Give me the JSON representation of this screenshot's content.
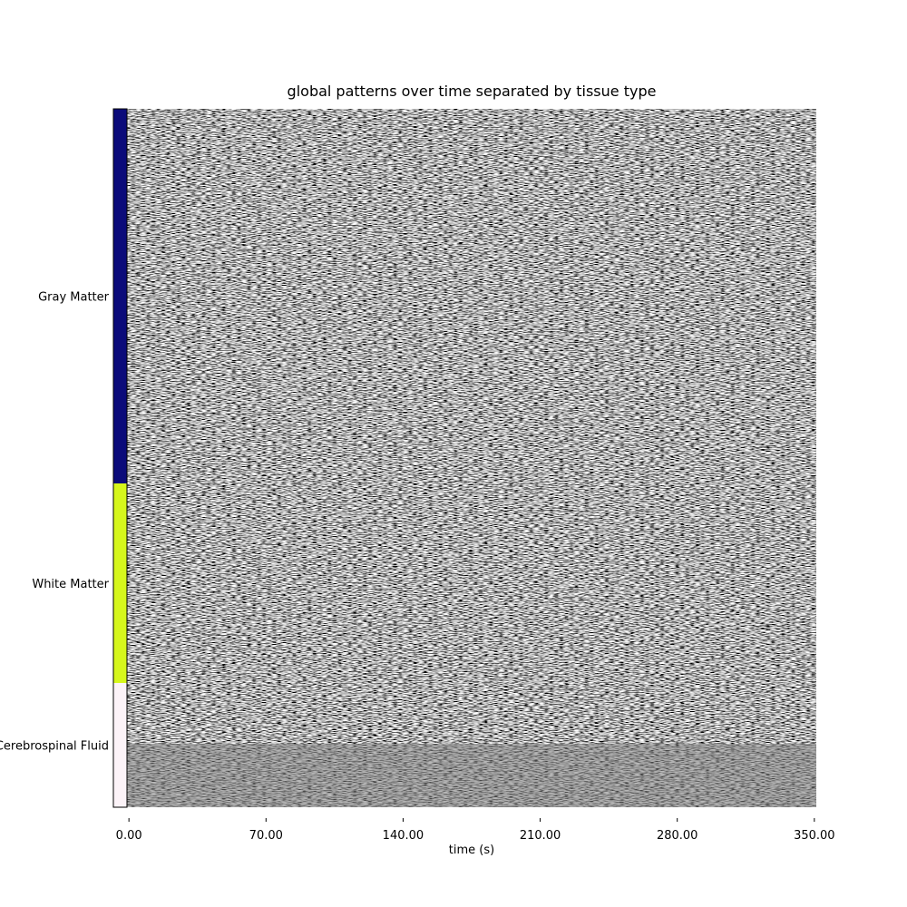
{
  "chart_data": {
    "type": "carpet",
    "title": "global patterns over time separated by tissue type",
    "x_label": "time (s)",
    "xlim": [
      -1,
      351
    ],
    "xticks": [
      {
        "value": 0,
        "label": "0.00"
      },
      {
        "value": 70,
        "label": "70.00"
      },
      {
        "value": 140,
        "label": "140.00"
      },
      {
        "value": 210,
        "label": "210.00"
      },
      {
        "value": 280,
        "label": "280.00"
      },
      {
        "value": 350,
        "label": "350.00"
      }
    ],
    "segments": [
      {
        "name": "Gray Matter",
        "color": "#0b0b7a",
        "size": 413
      },
      {
        "name": "White Matter",
        "color": "#d6f71c",
        "size": 220
      },
      {
        "name": "Cerebrospinal Fluid",
        "color": "#fcf3f8",
        "size": 137
      }
    ]
  }
}
